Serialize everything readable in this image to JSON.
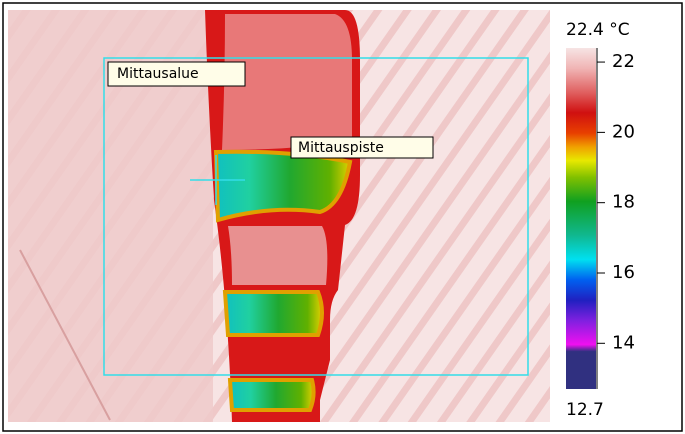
{
  "annotations": {
    "area_label": "Mittausalue",
    "point_label": "Mittauspiste"
  },
  "scale": {
    "top": {
      "value": 22.4,
      "label": "22.4 °C"
    },
    "bottom": 12.7,
    "ticks": [
      22,
      20,
      18,
      16,
      14
    ]
  }
}
